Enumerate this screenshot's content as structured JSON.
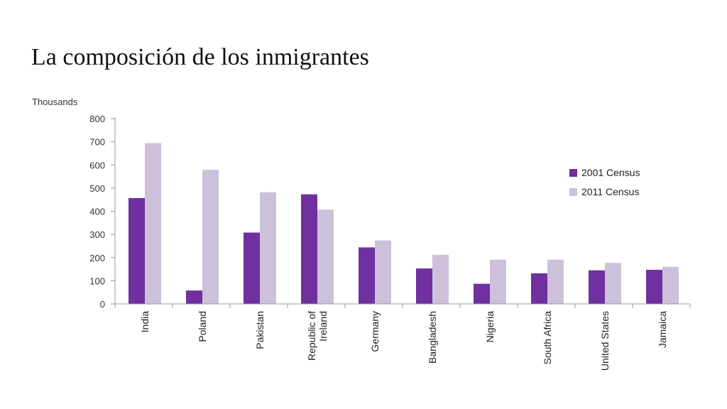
{
  "slide": {
    "title": "La composición de los inmigrantes"
  },
  "chart_data": {
    "type": "bar",
    "y_unit_label": "Thousands",
    "categories": [
      "India",
      "Poland",
      "Pakistan",
      "Republic of Ireland",
      "Germany",
      "Bangladesh",
      "Nigeria",
      "South Africa",
      "United States",
      "Jamaica"
    ],
    "category_lines": [
      [
        "India"
      ],
      [
        "Poland"
      ],
      [
        "Pakistan"
      ],
      [
        "Republic of",
        "Ireland"
      ],
      [
        "Germany"
      ],
      [
        "Bangladesh"
      ],
      [
        "Nigeria"
      ],
      [
        "South Africa"
      ],
      [
        "United States"
      ],
      [
        "Jamaica"
      ]
    ],
    "series": [
      {
        "name": "2001 Census",
        "color": "#7030a0",
        "values": [
          457,
          58,
          308,
          473,
          244,
          153,
          87,
          132,
          145,
          147
        ]
      },
      {
        "name": "2011 Census",
        "color": "#ccc0da",
        "values": [
          694,
          579,
          482,
          407,
          274,
          212,
          191,
          191,
          177,
          160
        ]
      }
    ],
    "ylim": [
      0,
      800
    ],
    "yticks": [
      0,
      100,
      200,
      300,
      400,
      500,
      600,
      700,
      800
    ],
    "grid": false,
    "legend_position": "right"
  }
}
